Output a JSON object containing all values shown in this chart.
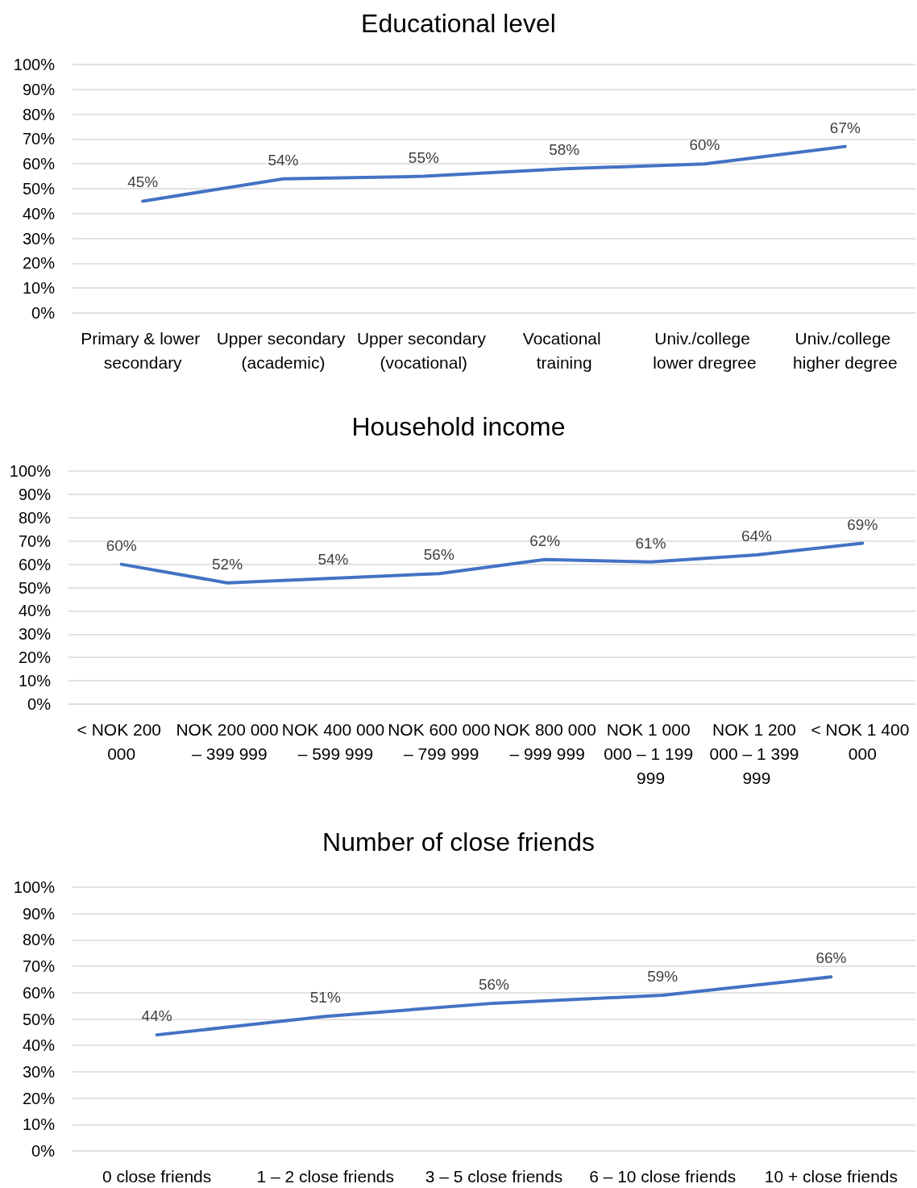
{
  "chart_data": [
    {
      "type": "line",
      "title": "Educational level",
      "categories": [
        "Primary & lower secondary",
        "Upper secondary (academic)",
        "Upper secondary (vocational)",
        "Vocational training",
        "Univ./college lower dregree",
        "Univ./college higher degree"
      ],
      "series": [
        {
          "color": "#4472c4",
          "values": [
            45,
            54,
            55,
            58,
            60,
            67
          ],
          "value_labels": [
            "45%",
            "54%",
            "55%",
            "58%",
            "60%",
            "67%"
          ]
        }
      ],
      "ylim": [
        0,
        100
      ],
      "yticks": [
        {
          "value": 0,
          "label": "0%"
        },
        {
          "value": 10,
          "label": "10%"
        },
        {
          "value": 20,
          "label": "20%"
        },
        {
          "value": 30,
          "label": "30%"
        },
        {
          "value": 40,
          "label": "40%"
        },
        {
          "value": 50,
          "label": "50%"
        },
        {
          "value": 60,
          "label": "60%"
        },
        {
          "value": 70,
          "label": "70%"
        },
        {
          "value": 80,
          "label": "80%"
        },
        {
          "value": 90,
          "label": "90%"
        },
        {
          "value": 100,
          "label": "100%"
        }
      ],
      "grid": "y",
      "marker": "none",
      "line_style": "solid"
    },
    {
      "type": "line",
      "title": "Household income",
      "categories": [
        "< NOK 200 000",
        "NOK 200 000 – 399 999",
        "NOK 400 000 – 599 999",
        "NOK 600 000 – 799 999",
        "NOK 800 000 – 999 999",
        "NOK 1 000 000 – 1 199 999",
        "NOK 1 200 000 – 1 399 999",
        "< NOK 1 400 000"
      ],
      "series": [
        {
          "color": "#4472c4",
          "values": [
            60,
            52,
            54,
            56,
            62,
            61,
            64,
            69
          ],
          "value_labels": [
            "60%",
            "52%",
            "54%",
            "56%",
            "62%",
            "61%",
            "64%",
            "69%"
          ]
        }
      ],
      "ylim": [
        0,
        100
      ],
      "yticks": [
        {
          "value": 0,
          "label": "0%"
        },
        {
          "value": 10,
          "label": "10%"
        },
        {
          "value": 20,
          "label": "20%"
        },
        {
          "value": 30,
          "label": "30%"
        },
        {
          "value": 40,
          "label": "40%"
        },
        {
          "value": 50,
          "label": "50%"
        },
        {
          "value": 60,
          "label": "60%"
        },
        {
          "value": 70,
          "label": "70%"
        },
        {
          "value": 80,
          "label": "80%"
        },
        {
          "value": 90,
          "label": "90%"
        },
        {
          "value": 100,
          "label": "100%"
        }
      ],
      "grid": "y",
      "marker": "none",
      "line_style": "solid"
    },
    {
      "type": "line",
      "title": "Number of close friends",
      "categories": [
        "0 close friends",
        "1 – 2 close friends",
        "3 – 5 close friends",
        "6 – 10 close friends",
        "10 + close friends"
      ],
      "series": [
        {
          "color": "#4472c4",
          "values": [
            44,
            51,
            56,
            59,
            66
          ],
          "value_labels": [
            "44%",
            "51%",
            "56%",
            "59%",
            "66%"
          ]
        }
      ],
      "ylim": [
        0,
        100
      ],
      "yticks": [
        {
          "value": 0,
          "label": "0%"
        },
        {
          "value": 10,
          "label": "10%"
        },
        {
          "value": 20,
          "label": "20%"
        },
        {
          "value": 30,
          "label": "30%"
        },
        {
          "value": 40,
          "label": "40%"
        },
        {
          "value": 50,
          "label": "50%"
        },
        {
          "value": 60,
          "label": "60%"
        },
        {
          "value": 70,
          "label": "70%"
        },
        {
          "value": 80,
          "label": "80%"
        },
        {
          "value": 90,
          "label": "90%"
        },
        {
          "value": 100,
          "label": "100%"
        }
      ],
      "grid": "y",
      "marker": "none",
      "line_style": "solid"
    }
  ]
}
